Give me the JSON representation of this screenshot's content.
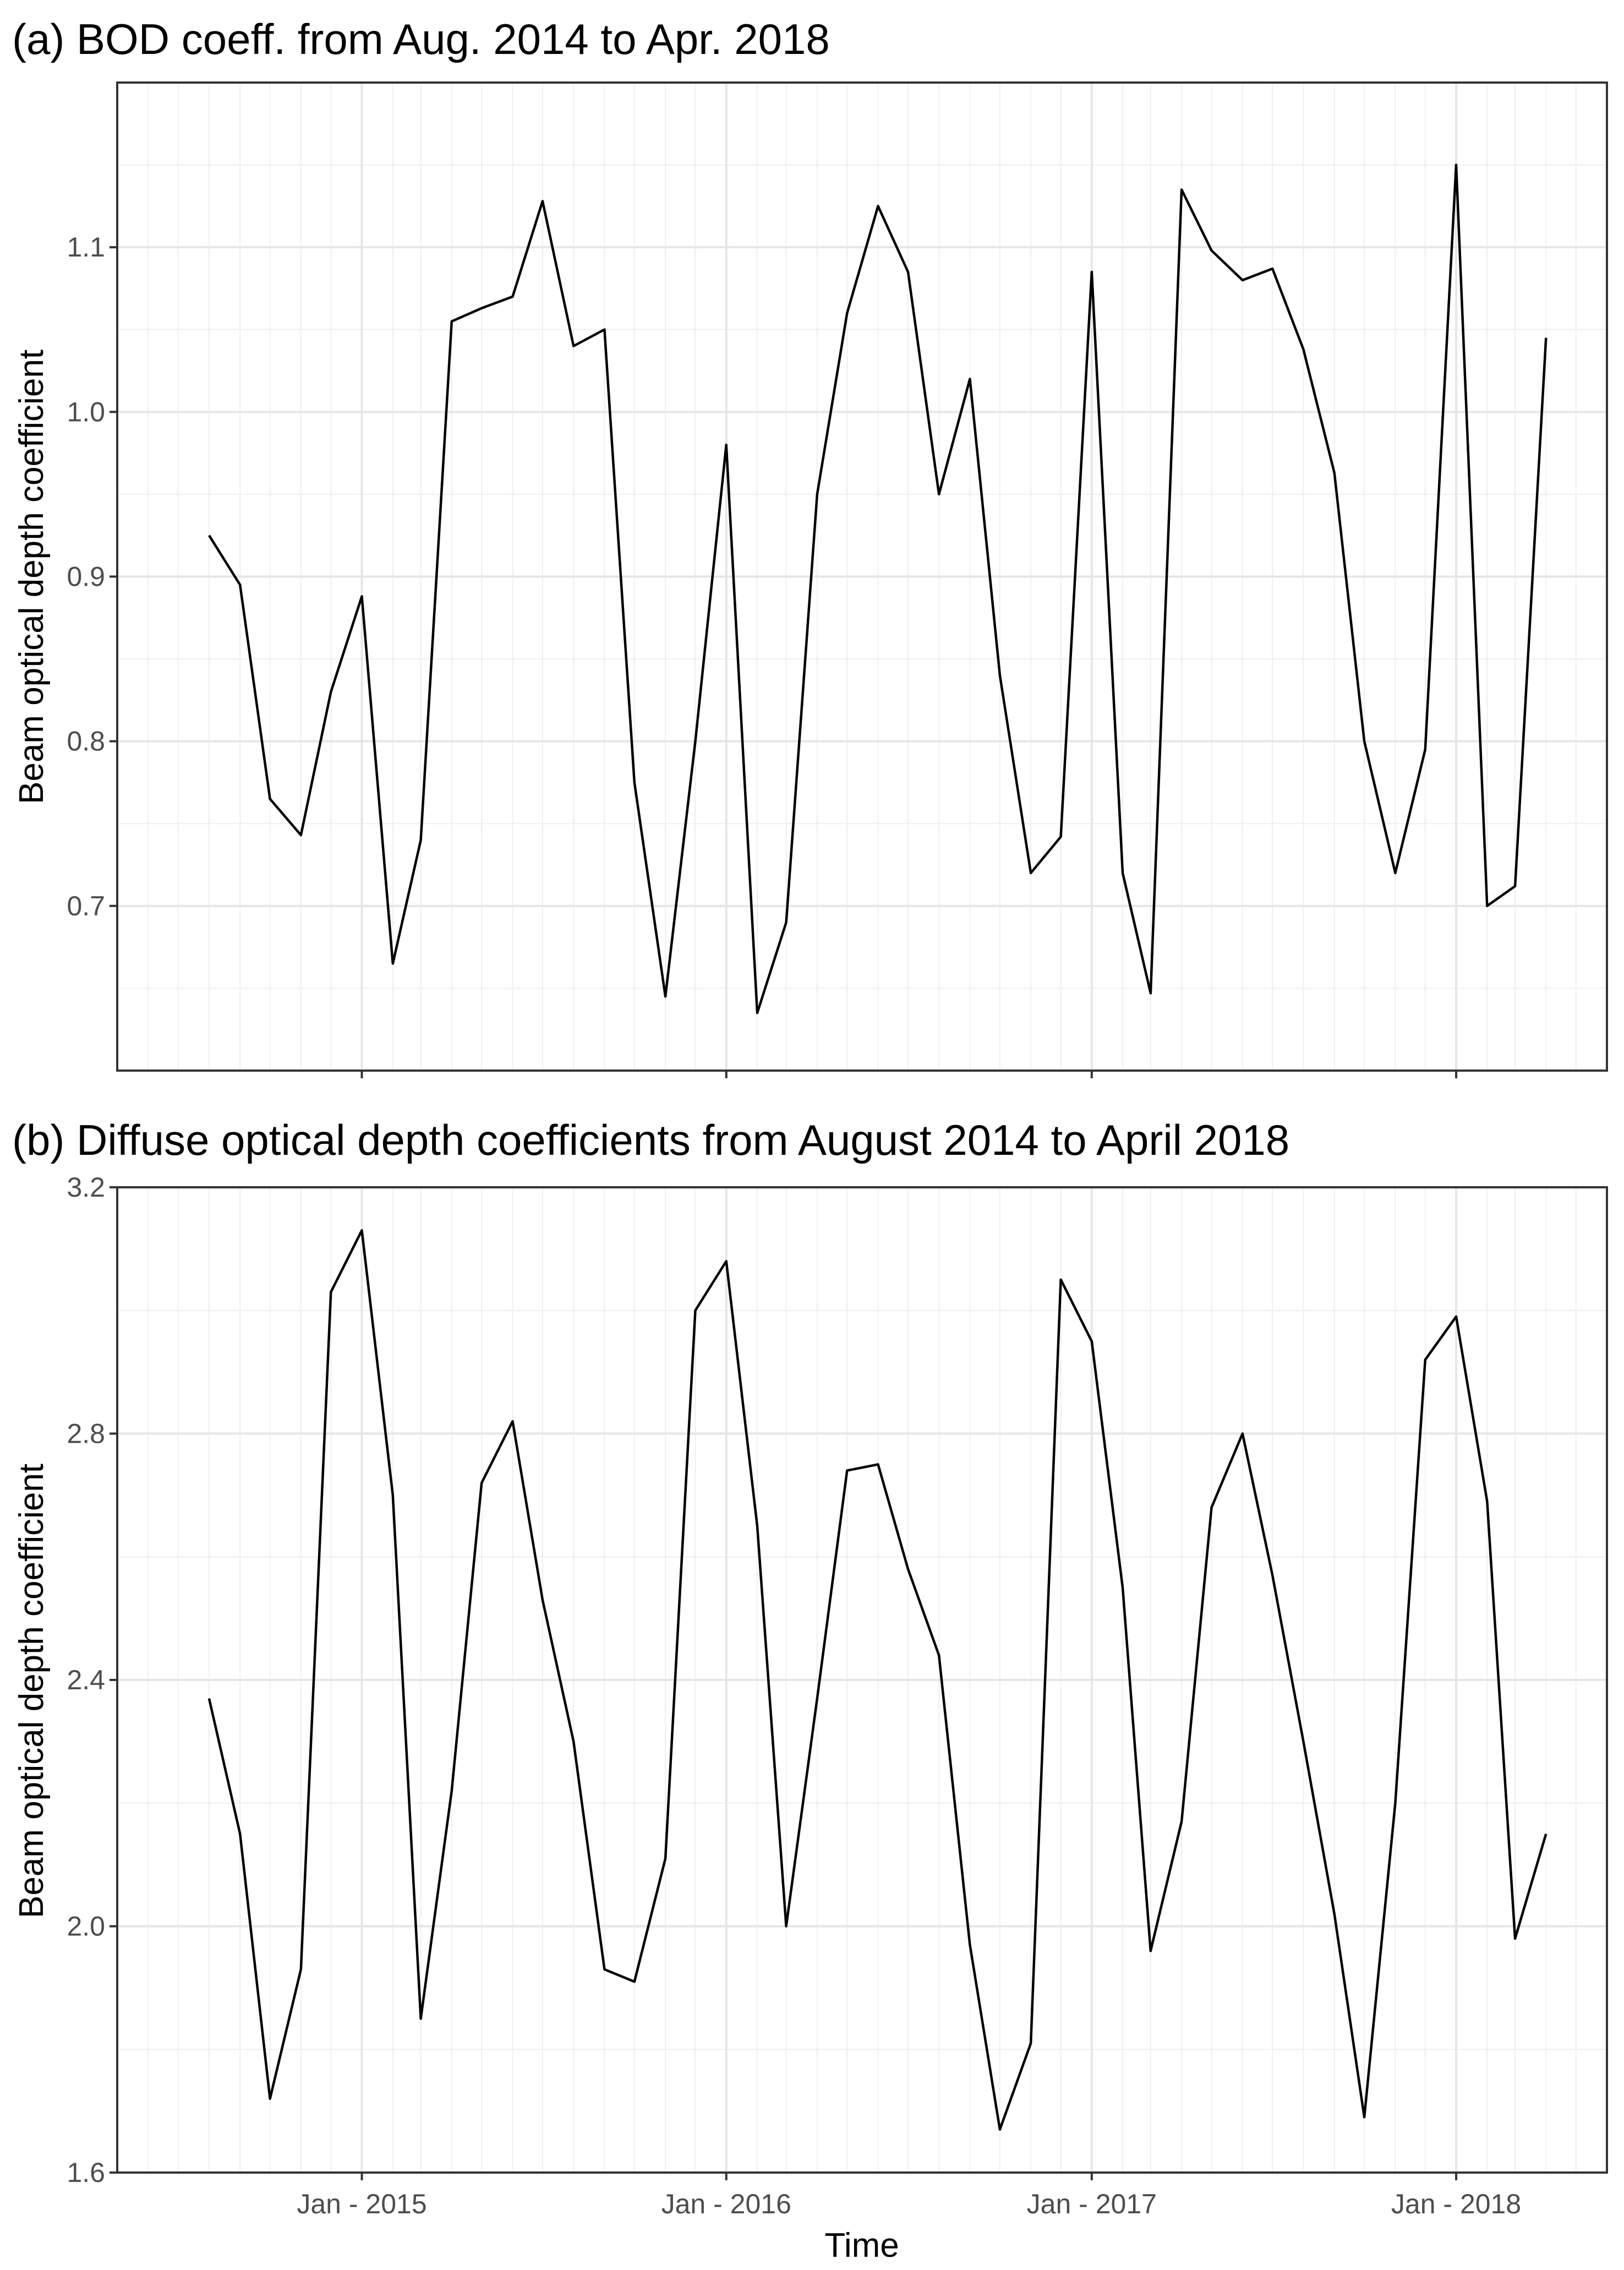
{
  "chart_data": [
    {
      "type": "line",
      "title": "(a) BOD coeff. from Aug. 2014 to Apr. 2018",
      "xlabel": "",
      "ylabel": "Beam optical depth coefficient",
      "xlim": [
        "2014-05-01",
        "2018-06-01"
      ],
      "ylim": [
        0.6,
        1.2
      ],
      "yticks": [
        0.7,
        0.8,
        0.9,
        1.0,
        1.1
      ],
      "ytick_labels": [
        "0.7",
        "0.8",
        "0.9",
        "1.0",
        "1.1"
      ],
      "xticks": [
        "2015-01-01",
        "2016-01-01",
        "2017-01-01",
        "2018-01-01"
      ],
      "xtick_labels": [
        "",
        "",
        "",
        ""
      ],
      "grid": true,
      "x": [
        "2014-08-01",
        "2014-09-01",
        "2014-10-01",
        "2014-11-01",
        "2014-12-01",
        "2015-01-01",
        "2015-02-01",
        "2015-03-01",
        "2015-04-01",
        "2015-05-01",
        "2015-06-01",
        "2015-07-01",
        "2015-08-01",
        "2015-09-01",
        "2015-10-01",
        "2015-11-01",
        "2015-12-01",
        "2016-01-01",
        "2016-02-01",
        "2016-03-01",
        "2016-04-01",
        "2016-05-01",
        "2016-06-01",
        "2016-07-01",
        "2016-08-01",
        "2016-09-01",
        "2016-10-01",
        "2016-11-01",
        "2016-12-01",
        "2017-01-01",
        "2017-02-01",
        "2017-03-01",
        "2017-04-01",
        "2017-05-01",
        "2017-06-01",
        "2017-07-01",
        "2017-08-01",
        "2017-09-01",
        "2017-10-01",
        "2017-11-01",
        "2017-12-01",
        "2018-01-01",
        "2018-02-01",
        "2018-03-01",
        "2018-04-01"
      ],
      "series": [
        {
          "values": [
            0.925,
            0.895,
            0.765,
            0.743,
            0.83,
            0.888,
            0.665,
            0.74,
            1.055,
            1.063,
            1.07,
            1.128,
            1.04,
            1.05,
            0.775,
            0.645,
            0.8,
            0.98,
            0.635,
            0.69,
            0.95,
            1.06,
            1.125,
            1.085,
            0.95,
            1.02,
            0.84,
            0.72,
            0.742,
            1.085,
            0.72,
            0.647,
            1.135,
            1.098,
            1.08,
            1.087,
            1.038,
            0.963,
            0.8,
            0.72,
            0.795,
            1.15,
            0.7,
            0.712,
            1.045
          ]
        }
      ]
    },
    {
      "type": "line",
      "title": "(b) Diffuse optical depth coefficients from August 2014 to April 2018",
      "xlabel": "Time",
      "ylabel": "Beam optical depth coefficient",
      "xlim": [
        "2014-05-01",
        "2018-06-01"
      ],
      "ylim": [
        1.6,
        3.2
      ],
      "yticks": [
        1.6,
        2.0,
        2.4,
        2.8,
        3.2
      ],
      "ytick_labels": [
        "1.6",
        "2.0",
        "2.4",
        "2.8",
        "3.2"
      ],
      "xticks": [
        "2015-01-01",
        "2016-01-01",
        "2017-01-01",
        "2018-01-01"
      ],
      "xtick_labels": [
        "Jan - 2015",
        "Jan - 2016",
        "Jan - 2017",
        "Jan - 2018"
      ],
      "grid": true,
      "x": [
        "2014-08-01",
        "2014-09-01",
        "2014-10-01",
        "2014-11-01",
        "2014-12-01",
        "2015-01-01",
        "2015-02-01",
        "2015-03-01",
        "2015-04-01",
        "2015-05-01",
        "2015-06-01",
        "2015-07-01",
        "2015-08-01",
        "2015-09-01",
        "2015-10-01",
        "2015-11-01",
        "2015-12-01",
        "2016-01-01",
        "2016-02-01",
        "2016-03-01",
        "2016-04-01",
        "2016-05-01",
        "2016-06-01",
        "2016-07-01",
        "2016-08-01",
        "2016-09-01",
        "2016-10-01",
        "2016-11-01",
        "2016-12-01",
        "2017-01-01",
        "2017-02-01",
        "2017-03-01",
        "2017-04-01",
        "2017-05-01",
        "2017-06-01",
        "2017-07-01",
        "2017-08-01",
        "2017-09-01",
        "2017-10-01",
        "2017-11-01",
        "2017-12-01",
        "2018-01-01",
        "2018-02-01",
        "2018-03-01",
        "2018-04-01"
      ],
      "series": [
        {
          "values": [
            2.37,
            2.15,
            1.72,
            1.93,
            3.03,
            3.13,
            2.7,
            1.85,
            2.22,
            2.72,
            2.82,
            2.53,
            2.3,
            1.93,
            1.91,
            2.11,
            3.0,
            3.08,
            2.65,
            2.0,
            2.37,
            2.74,
            2.75,
            2.58,
            2.44,
            1.97,
            1.67,
            1.81,
            3.05,
            2.95,
            2.55,
            1.96,
            2.17,
            2.68,
            2.8,
            2.57,
            2.3,
            2.02,
            1.69,
            2.2,
            2.92,
            2.99,
            2.69,
            1.98,
            2.15
          ]
        }
      ]
    }
  ]
}
